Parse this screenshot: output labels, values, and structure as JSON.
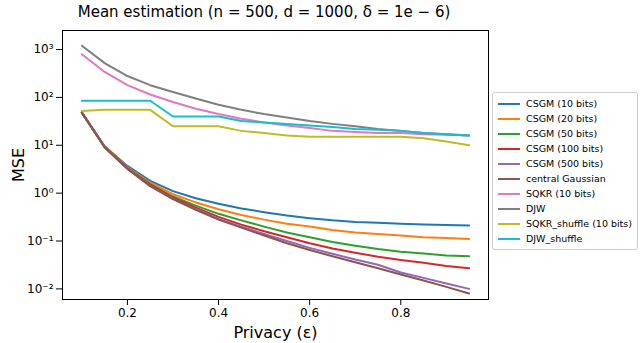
{
  "chart_data": {
    "type": "line",
    "title": "Mean estimation (n = 500, d = 1000, δ = 1e − 6)",
    "x_label": "Privacy (ε)",
    "y_label": "MSE",
    "x": [
      0.1,
      0.15,
      0.2,
      0.25,
      0.3,
      0.35,
      0.4,
      0.45,
      0.5,
      0.55,
      0.6,
      0.65,
      0.7,
      0.75,
      0.8,
      0.85,
      0.9,
      0.95
    ],
    "xlim": [
      0.0575,
      0.9925
    ],
    "xticks": [
      0.2,
      0.4,
      0.6,
      0.8
    ],
    "log": "y",
    "ylim": [
      0.006,
      2500
    ],
    "yticks": [
      {
        "value": 0.01,
        "label": "10⁻²"
      },
      {
        "value": 0.1,
        "label": "10⁻¹"
      },
      {
        "value": 1,
        "label": "10⁰"
      },
      {
        "value": 10,
        "label": "10¹"
      },
      {
        "value": 100,
        "label": "10²"
      },
      {
        "value": 1000,
        "label": "10³"
      }
    ],
    "grid": false,
    "legend": "right",
    "series": [
      {
        "name": "CSGM (10 bits)",
        "color": "#1f77b4",
        "values": [
          48,
          9.5,
          3.7,
          1.8,
          1.1,
          0.78,
          0.6,
          0.48,
          0.4,
          0.34,
          0.3,
          0.27,
          0.25,
          0.24,
          0.23,
          0.22,
          0.215,
          0.21
        ]
      },
      {
        "name": "CSGM (20 bits)",
        "color": "#ff7f0e",
        "values": [
          48,
          9.4,
          3.5,
          1.65,
          0.95,
          0.64,
          0.46,
          0.35,
          0.28,
          0.23,
          0.2,
          0.17,
          0.15,
          0.14,
          0.13,
          0.12,
          0.115,
          0.11
        ]
      },
      {
        "name": "CSGM (50 bits)",
        "color": "#2ca02c",
        "values": [
          48,
          9.3,
          3.4,
          1.55,
          0.85,
          0.55,
          0.37,
          0.27,
          0.2,
          0.15,
          0.12,
          0.095,
          0.08,
          0.068,
          0.06,
          0.055,
          0.05,
          0.048
        ]
      },
      {
        "name": "CSGM (100 bits)",
        "color": "#d62728",
        "values": [
          48,
          9.2,
          3.3,
          1.5,
          0.8,
          0.5,
          0.32,
          0.22,
          0.16,
          0.12,
          0.09,
          0.07,
          0.057,
          0.047,
          0.04,
          0.035,
          0.03,
          0.027
        ]
      },
      {
        "name": "CSGM (500 bits)",
        "color": "#9467bd",
        "values": [
          48,
          9.1,
          3.25,
          1.42,
          0.76,
          0.46,
          0.29,
          0.2,
          0.14,
          0.1,
          0.072,
          0.054,
          0.041,
          0.032,
          0.022,
          0.017,
          0.013,
          0.01
        ]
      },
      {
        "name": "central Gaussian",
        "color": "#8c564b",
        "values": [
          48,
          9,
          3.2,
          1.4,
          0.75,
          0.45,
          0.28,
          0.19,
          0.13,
          0.09,
          0.065,
          0.048,
          0.036,
          0.027,
          0.02,
          0.015,
          0.011,
          0.008
        ]
      },
      {
        "name": "SQKR (10 bits)",
        "color": "#e377c2",
        "values": [
          800,
          340,
          180,
          115,
          80,
          58,
          45,
          36,
          30,
          26,
          23,
          20,
          19,
          18,
          18,
          17,
          16.5,
          16
        ]
      },
      {
        "name": "DJW",
        "color": "#7f7f7f",
        "values": [
          1200,
          520,
          280,
          180,
          130,
          95,
          70,
          55,
          45,
          38,
          32,
          28,
          25,
          22,
          20,
          18,
          17,
          16
        ]
      },
      {
        "name": "SQKR_shuffle (10 bits)",
        "color": "#bcbd22",
        "values": [
          52,
          55,
          55,
          55,
          25,
          25,
          25,
          20,
          18,
          16,
          15,
          15,
          15,
          15,
          15,
          14,
          12,
          10
        ]
      },
      {
        "name": "DJW_shuffle",
        "color": "#17becf",
        "values": [
          85,
          85,
          85,
          85,
          40,
          40,
          40,
          32,
          30,
          28,
          26,
          24,
          22,
          21,
          20,
          18,
          17,
          16
        ]
      }
    ]
  }
}
